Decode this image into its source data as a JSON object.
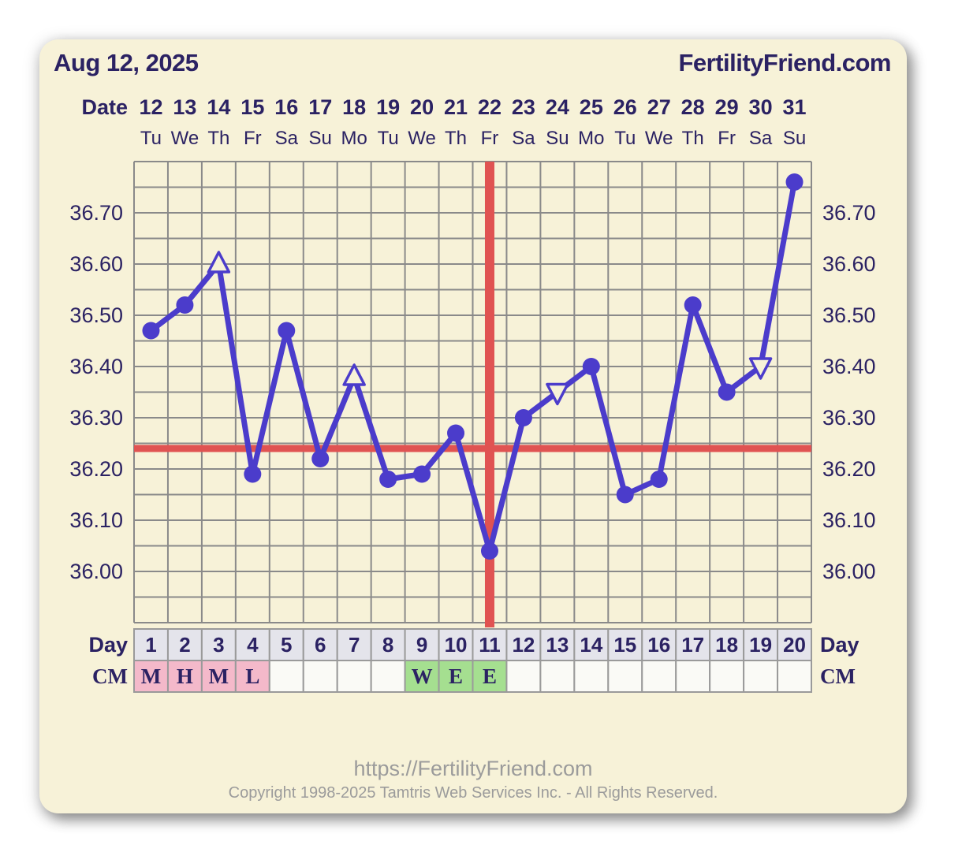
{
  "header": {
    "title": "Aug 12, 2025",
    "brand": "FertilityFriend.com"
  },
  "labels": {
    "date": "Date",
    "day": "Day",
    "cm": "CM"
  },
  "footer": {
    "url": "https://FertilityFriend.com",
    "copyright": "Copyright 1998-2025 Tamtris Web Services Inc. - All Rights Reserved."
  },
  "colors": {
    "card_bg": "#F7F2D8",
    "navy_text": "#2B2263",
    "temp_line": "#4B3CCB",
    "signal_red": "#E05352",
    "grid": "#8A8A8A",
    "cell_border": "#9A9A9A",
    "day_cell_bg": "#E4E4EB",
    "cm_empty_bg": "#FAFAF6",
    "cm_pink": "#F4B9CA",
    "cm_green": "#A5DF90",
    "footer_gray": "#9B9B9B"
  },
  "chart_data": {
    "type": "line",
    "title": "Basal body temperature cycle chart",
    "dates": [
      12,
      13,
      14,
      15,
      16,
      17,
      18,
      19,
      20,
      21,
      22,
      23,
      24,
      25,
      26,
      27,
      28,
      29,
      30,
      31
    ],
    "weekdays": [
      "Tu",
      "We",
      "Th",
      "Fr",
      "Sa",
      "Su",
      "Mo",
      "Tu",
      "We",
      "Th",
      "Fr",
      "Sa",
      "Su",
      "Mo",
      "Tu",
      "We",
      "Th",
      "Fr",
      "Sa",
      "Su"
    ],
    "cycle_days": [
      1,
      2,
      3,
      4,
      5,
      6,
      7,
      8,
      9,
      10,
      11,
      12,
      13,
      14,
      15,
      16,
      17,
      18,
      19,
      20
    ],
    "temps_c": [
      36.47,
      36.52,
      36.6,
      36.19,
      36.47,
      36.22,
      36.38,
      36.18,
      36.19,
      36.27,
      36.04,
      36.3,
      36.35,
      36.4,
      36.15,
      36.18,
      36.52,
      36.35,
      36.4,
      36.76
    ],
    "markers": [
      "dot",
      "dot",
      "triangle-up",
      "dot",
      "dot",
      "dot",
      "triangle-up",
      "dot",
      "dot",
      "dot",
      "dot",
      "dot",
      "triangle-down",
      "dot",
      "dot",
      "dot",
      "dot",
      "dot",
      "triangle-down",
      "dot"
    ],
    "coverline": 36.24,
    "vertical_line_cycle_day": 11,
    "ylim": [
      35.9,
      36.8
    ],
    "grid_step": 0.05,
    "ytick_labels": [
      "36.70",
      "36.60",
      "36.50",
      "36.40",
      "36.30",
      "36.20",
      "36.10",
      "36.00"
    ],
    "ytick_sides": "both",
    "cm_values": [
      "M",
      "H",
      "M",
      "L",
      "",
      "",
      "",
      "",
      "W",
      "E",
      "E",
      "",
      "",
      "",
      "",
      "",
      "",
      "",
      "",
      ""
    ],
    "cm_colors": [
      "pink",
      "pink",
      "pink",
      "pink",
      "none",
      "none",
      "none",
      "none",
      "green",
      "green",
      "green",
      "none",
      "none",
      "none",
      "none",
      "none",
      "none",
      "none",
      "none",
      "none"
    ],
    "legend": "none",
    "grid_on": true
  }
}
